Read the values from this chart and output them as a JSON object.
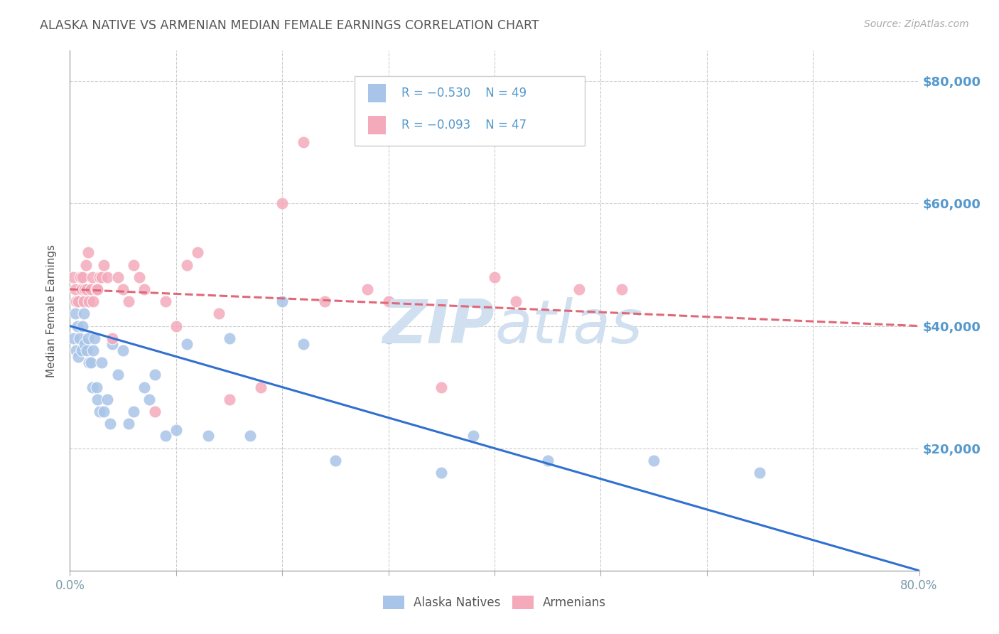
{
  "title": "ALASKA NATIVE VS ARMENIAN MEDIAN FEMALE EARNINGS CORRELATION CHART",
  "source": "Source: ZipAtlas.com",
  "ylabel": "Median Female Earnings",
  "xtick_positions": [
    0,
    10,
    20,
    30,
    40,
    50,
    60,
    70,
    80
  ],
  "xtick_labels_show": [
    "0.0%",
    "",
    "",
    "",
    "",
    "",
    "",
    "",
    "80.0%"
  ],
  "ytick_vals": [
    0,
    20000,
    40000,
    60000,
    80000
  ],
  "ytick_labels": [
    "",
    "$20,000",
    "$40,000",
    "$60,000",
    "$80,000"
  ],
  "xlim": [
    0,
    80
  ],
  "ylim": [
    0,
    85000
  ],
  "alaska_R": -0.53,
  "alaska_N": 49,
  "armenian_R": -0.093,
  "armenian_N": 47,
  "alaska_color": "#a8c4e8",
  "armenian_color": "#f4aabb",
  "alaska_line_color": "#3070d0",
  "armenian_line_color": "#e06878",
  "background_color": "#ffffff",
  "grid_color": "#cccccc",
  "title_color": "#555555",
  "axis_label_color": "#555555",
  "tick_label_color": "#7799aa",
  "right_tick_color": "#5599cc",
  "watermark_color": "#d0e0f0",
  "alaska_x": [
    0.3,
    0.5,
    0.6,
    0.7,
    0.8,
    0.9,
    1.0,
    1.1,
    1.2,
    1.3,
    1.4,
    1.5,
    1.6,
    1.7,
    1.8,
    2.0,
    2.1,
    2.2,
    2.3,
    2.5,
    2.6,
    2.8,
    3.0,
    3.2,
    3.5,
    3.8,
    4.0,
    4.5,
    5.0,
    5.5,
    6.0,
    7.0,
    7.5,
    8.0,
    9.0,
    10.0,
    11.0,
    13.0,
    15.0,
    17.0,
    20.0,
    22.0,
    25.0,
    30.0,
    35.0,
    38.0,
    45.0,
    55.0,
    65.0
  ],
  "alaska_y": [
    38000,
    42000,
    36000,
    40000,
    35000,
    38000,
    44000,
    36000,
    40000,
    42000,
    37000,
    46000,
    36000,
    38000,
    34000,
    34000,
    30000,
    36000,
    38000,
    30000,
    28000,
    26000,
    34000,
    26000,
    28000,
    24000,
    37000,
    32000,
    36000,
    24000,
    26000,
    30000,
    28000,
    32000,
    22000,
    23000,
    37000,
    22000,
    38000,
    22000,
    44000,
    37000,
    18000,
    38000,
    16000,
    22000,
    18000,
    18000,
    16000
  ],
  "armenian_x": [
    0.3,
    0.5,
    0.6,
    0.8,
    1.0,
    1.1,
    1.2,
    1.3,
    1.4,
    1.5,
    1.6,
    1.7,
    1.8,
    2.0,
    2.1,
    2.2,
    2.5,
    2.6,
    2.8,
    3.0,
    3.2,
    3.5,
    4.0,
    4.5,
    5.0,
    5.5,
    6.0,
    6.5,
    7.0,
    8.0,
    9.0,
    10.0,
    11.0,
    12.0,
    14.0,
    15.0,
    18.0,
    20.0,
    22.0,
    24.0,
    28.0,
    30.0,
    35.0,
    40.0,
    42.0,
    48.0,
    52.0
  ],
  "armenian_y": [
    48000,
    46000,
    44000,
    44000,
    48000,
    46000,
    48000,
    44000,
    46000,
    50000,
    46000,
    52000,
    44000,
    46000,
    48000,
    44000,
    46000,
    46000,
    48000,
    48000,
    50000,
    48000,
    38000,
    48000,
    46000,
    44000,
    50000,
    48000,
    46000,
    26000,
    44000,
    40000,
    50000,
    52000,
    42000,
    28000,
    30000,
    60000,
    70000,
    44000,
    46000,
    44000,
    30000,
    48000,
    44000,
    46000,
    46000
  ],
  "alaska_line_x0": 0,
  "alaska_line_y0": 40000,
  "alaska_line_x1": 80,
  "alaska_line_y1": 0,
  "armenian_line_x0": 0,
  "armenian_line_y0": 46000,
  "armenian_line_x1": 80,
  "armenian_line_y1": 40000
}
